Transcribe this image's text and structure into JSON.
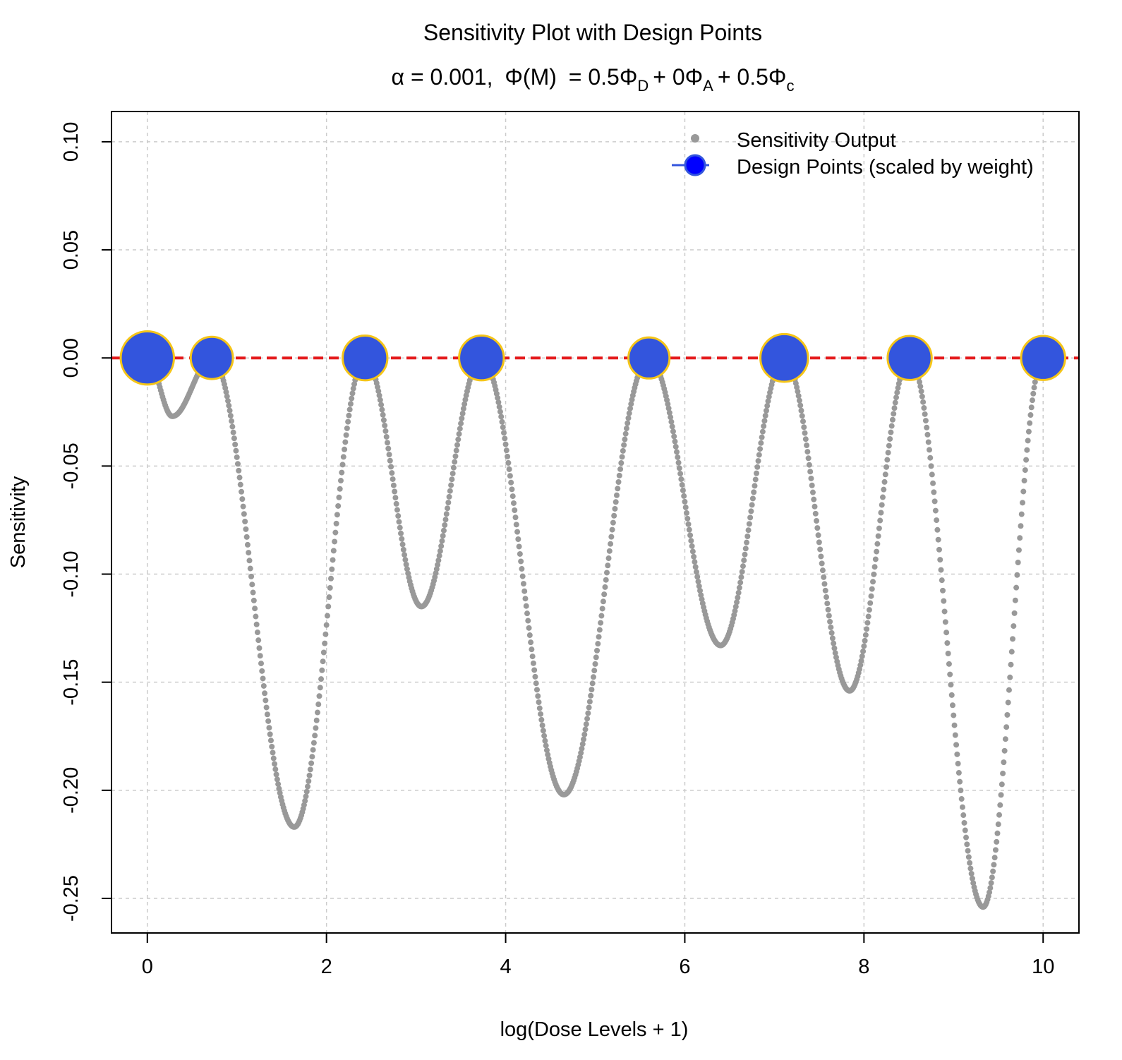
{
  "chart_data": {
    "type": "scatter",
    "title": "Sensitivity Plot with Design Points",
    "subtitle": {
      "alpha_label": "α = 0.001,",
      "formula_lhs": "Φ(M)",
      "formula_rhs": "= 0.5Φ",
      "sub_D": "D",
      "plus_0": "+ 0Φ",
      "sub_A": "A",
      "plus_05": "+ 0.5Φ",
      "sub_c": "c"
    },
    "xlabel": "log(Dose Levels + 1)",
    "ylabel": "Sensitivity",
    "xlim": [
      -0.4,
      10.4
    ],
    "ylim": [
      -0.266,
      0.114
    ],
    "x_ticks": [
      0,
      2,
      4,
      6,
      8,
      10
    ],
    "x_tick_labels": [
      "0",
      "2",
      "4",
      "6",
      "8",
      "10"
    ],
    "y_ticks": [
      -0.25,
      -0.2,
      -0.15,
      -0.1,
      -0.05,
      0.0,
      0.05,
      0.1
    ],
    "y_tick_labels": [
      "-0.25",
      "-0.20",
      "-0.15",
      "-0.10",
      "-0.05",
      "0.00",
      "0.05",
      "0.10"
    ],
    "grid": true,
    "reference_line": {
      "y": 0,
      "color": "#e41a1c",
      "style": "dashed"
    },
    "sensitivity_curve": {
      "name": "Sensitivity Output",
      "color": "#999999",
      "x_range": [
        0,
        10
      ],
      "n_points": 1000,
      "zeros": [
        0,
        0.72,
        2.43,
        3.73,
        5.6,
        7.11,
        8.51,
        10
      ],
      "minima": [
        {
          "x": 0.28,
          "y": -0.027
        },
        {
          "x": 1.64,
          "y": -0.217
        },
        {
          "x": 3.06,
          "y": -0.115
        },
        {
          "x": 4.65,
          "y": -0.202
        },
        {
          "x": 6.4,
          "y": -0.133
        },
        {
          "x": 7.84,
          "y": -0.154
        },
        {
          "x": 9.33,
          "y": -0.254
        }
      ]
    },
    "design_points": {
      "name": "Design Points (scaled by weight)",
      "fill": "#3355dd",
      "stroke": "#f5c518",
      "points": [
        {
          "x": 0.0,
          "y": 0,
          "weight": 0.145
        },
        {
          "x": 0.72,
          "y": 0,
          "weight": 0.115
        },
        {
          "x": 2.43,
          "y": 0,
          "weight": 0.122
        },
        {
          "x": 3.73,
          "y": 0,
          "weight": 0.122
        },
        {
          "x": 5.6,
          "y": 0,
          "weight": 0.112
        },
        {
          "x": 7.11,
          "y": 0,
          "weight": 0.13
        },
        {
          "x": 8.51,
          "y": 0,
          "weight": 0.12
        },
        {
          "x": 10.0,
          "y": 0,
          "weight": 0.12
        }
      ]
    },
    "legend": {
      "position": "top-right",
      "entries": [
        "Sensitivity Output",
        "Design Points (scaled by weight)"
      ]
    }
  }
}
